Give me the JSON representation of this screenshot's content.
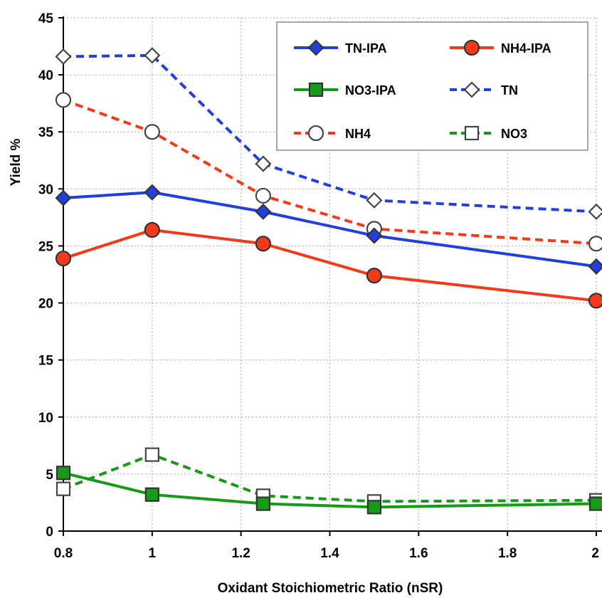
{
  "chart_data": {
    "type": "line",
    "title": "",
    "xlabel": "Oxidant Stoichiometric Ratio (nSR)",
    "ylabel": "Yield %",
    "xlim": [
      0.8,
      2
    ],
    "ylim": [
      0,
      45
    ],
    "x_ticks": [
      "0.8",
      "1",
      "1.2",
      "1.4",
      "1.6",
      "1.8",
      "2"
    ],
    "y_ticks": [
      "0",
      "5",
      "10",
      "15",
      "20",
      "25",
      "30",
      "35",
      "40",
      "45"
    ],
    "grid": true,
    "legend_position": "top-right",
    "x": [
      0.8,
      1,
      1.25,
      1.5,
      2
    ],
    "series": [
      {
        "name": "TN-IPA",
        "values": [
          29.2,
          29.7,
          28.0,
          25.9,
          23.2
        ],
        "color": "#1f3fe0",
        "dash": "solid",
        "marker": "diamond",
        "filled": true
      },
      {
        "name": "NH4-IPA",
        "values": [
          23.9,
          26.4,
          25.2,
          22.4,
          20.2
        ],
        "color": "#f23a1a",
        "dash": "solid",
        "marker": "circle",
        "filled": true
      },
      {
        "name": "NO3-IPA",
        "values": [
          5.1,
          3.2,
          2.4,
          2.1,
          2.4
        ],
        "color": "#179a17",
        "dash": "solid",
        "marker": "square",
        "filled": true
      },
      {
        "name": "TN",
        "values": [
          41.6,
          41.7,
          32.2,
          29.0,
          28.0
        ],
        "color": "#1f3fe0",
        "dash": "dashed",
        "marker": "diamond",
        "filled": false
      },
      {
        "name": "NH4",
        "values": [
          37.8,
          35.0,
          29.4,
          26.5,
          25.2
        ],
        "color": "#f23a1a",
        "dash": "dashed",
        "marker": "circle",
        "filled": false
      },
      {
        "name": "NO3",
        "values": [
          3.7,
          6.7,
          3.1,
          2.6,
          2.7
        ],
        "color": "#179a17",
        "dash": "dashed",
        "marker": "square",
        "filled": false
      }
    ]
  }
}
